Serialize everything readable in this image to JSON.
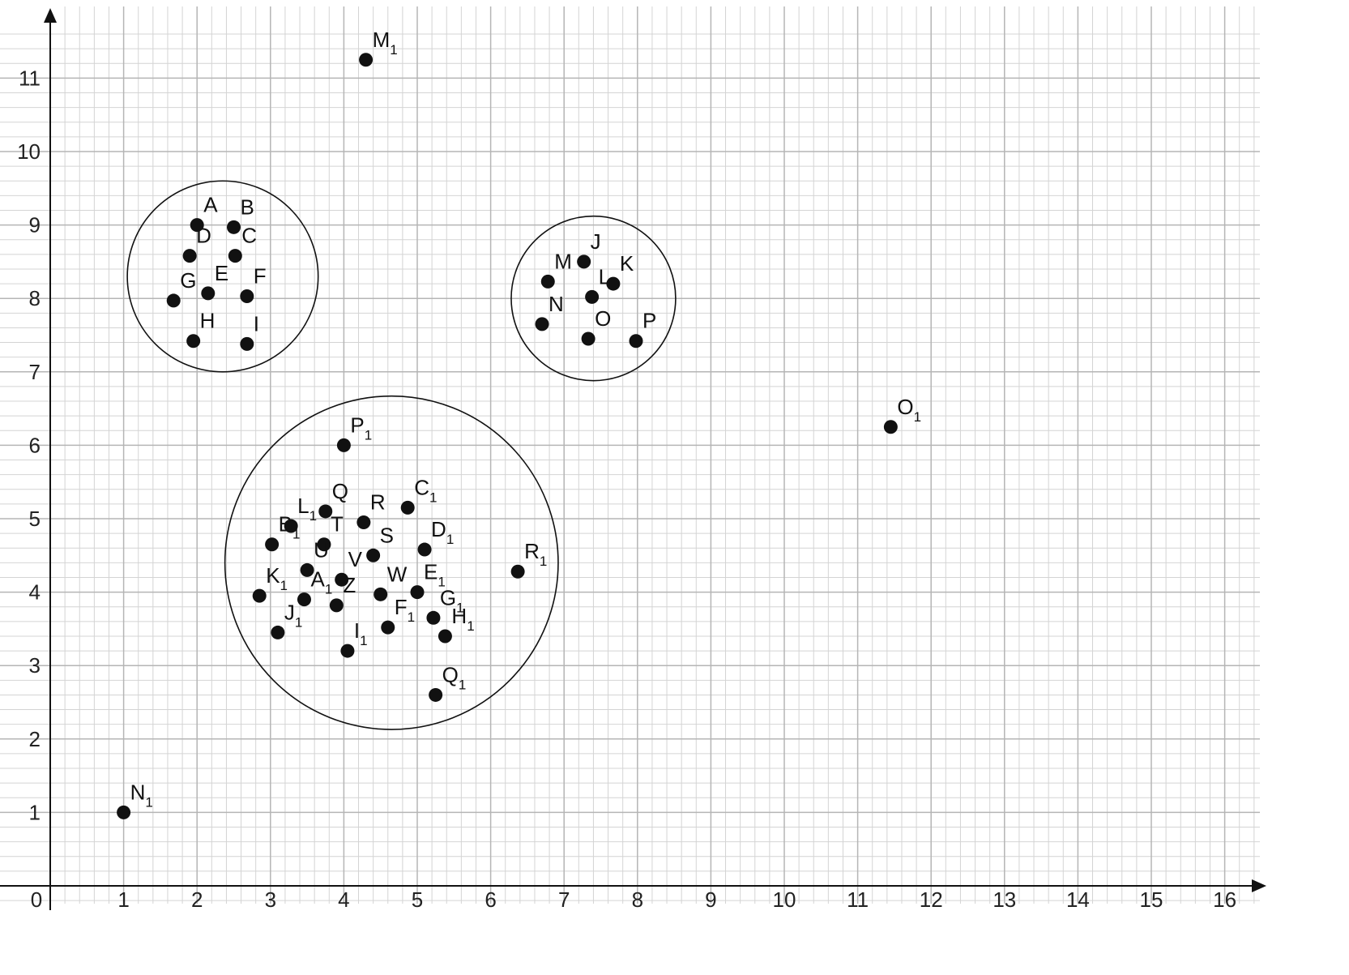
{
  "chart_data": {
    "type": "scatter",
    "title": "",
    "xlabel": "",
    "ylabel": "",
    "xlim": [
      0,
      16.5
    ],
    "ylim": [
      0,
      11.7
    ],
    "x_ticks": [
      0,
      1,
      2,
      3,
      4,
      5,
      6,
      7,
      8,
      9,
      10,
      11,
      12,
      13,
      14,
      15,
      16
    ],
    "y_ticks": [
      1,
      2,
      3,
      4,
      5,
      6,
      7,
      8,
      9,
      10,
      11
    ],
    "grid": true,
    "minor_grid_step": 0.2,
    "colors": {
      "grid_minor": "#d4d4d4",
      "grid_major": "#b5b5b5",
      "axis": "#111111",
      "point": "#111111",
      "circle": "#111111"
    },
    "circles": [
      {
        "name": "cluster-1",
        "cx": 2.35,
        "cy": 8.3,
        "r": 1.3
      },
      {
        "name": "cluster-2",
        "cx": 7.4,
        "cy": 8.0,
        "r": 1.12
      },
      {
        "name": "cluster-3",
        "cx": 4.65,
        "cy": 4.4,
        "r": 2.27
      }
    ],
    "points": [
      {
        "label": "A",
        "sub": "",
        "x": 2.0,
        "y": 9.0
      },
      {
        "label": "B",
        "sub": "",
        "x": 2.5,
        "y": 8.97
      },
      {
        "label": "C",
        "sub": "",
        "x": 2.52,
        "y": 8.58
      },
      {
        "label": "D",
        "sub": "",
        "x": 1.9,
        "y": 8.58
      },
      {
        "label": "E",
        "sub": "",
        "x": 2.15,
        "y": 8.07
      },
      {
        "label": "F",
        "sub": "",
        "x": 2.68,
        "y": 8.03
      },
      {
        "label": "G",
        "sub": "",
        "x": 1.68,
        "y": 7.97
      },
      {
        "label": "H",
        "sub": "",
        "x": 1.95,
        "y": 7.42
      },
      {
        "label": "I",
        "sub": "",
        "x": 2.68,
        "y": 7.38
      },
      {
        "label": "J",
        "sub": "",
        "x": 7.27,
        "y": 8.5
      },
      {
        "label": "K",
        "sub": "",
        "x": 7.67,
        "y": 8.2
      },
      {
        "label": "L",
        "sub": "",
        "x": 7.38,
        "y": 8.02
      },
      {
        "label": "M",
        "sub": "",
        "x": 6.78,
        "y": 8.23
      },
      {
        "label": "N",
        "sub": "",
        "x": 6.7,
        "y": 7.65
      },
      {
        "label": "O",
        "sub": "",
        "x": 7.33,
        "y": 7.45
      },
      {
        "label": "P",
        "sub": "",
        "x": 7.98,
        "y": 7.42
      },
      {
        "label": "Q",
        "sub": "",
        "x": 3.75,
        "y": 5.1
      },
      {
        "label": "R",
        "sub": "",
        "x": 4.27,
        "y": 4.95
      },
      {
        "label": "S",
        "sub": "",
        "x": 4.4,
        "y": 4.5
      },
      {
        "label": "T",
        "sub": "",
        "x": 3.73,
        "y": 4.65
      },
      {
        "label": "U",
        "sub": "",
        "x": 3.5,
        "y": 4.3
      },
      {
        "label": "V",
        "sub": "",
        "x": 3.97,
        "y": 4.17
      },
      {
        "label": "W",
        "sub": "",
        "x": 4.5,
        "y": 3.97
      },
      {
        "label": "Z",
        "sub": "",
        "x": 3.9,
        "y": 3.82
      },
      {
        "label": "B",
        "sub": "1",
        "x": 3.02,
        "y": 4.65
      },
      {
        "label": "A",
        "sub": "1",
        "x": 3.46,
        "y": 3.9
      },
      {
        "label": "C",
        "sub": "1",
        "x": 4.87,
        "y": 5.15
      },
      {
        "label": "D",
        "sub": "1",
        "x": 5.1,
        "y": 4.58
      },
      {
        "label": "E",
        "sub": "1",
        "x": 5.0,
        "y": 4.0
      },
      {
        "label": "F",
        "sub": "1",
        "x": 4.6,
        "y": 3.52
      },
      {
        "label": "G",
        "sub": "1",
        "x": 5.22,
        "y": 3.65
      },
      {
        "label": "H",
        "sub": "1",
        "x": 5.38,
        "y": 3.4
      },
      {
        "label": "I",
        "sub": "1",
        "x": 4.05,
        "y": 3.2
      },
      {
        "label": "J",
        "sub": "1",
        "x": 3.1,
        "y": 3.45
      },
      {
        "label": "K",
        "sub": "1",
        "x": 2.85,
        "y": 3.95
      },
      {
        "label": "L",
        "sub": "1",
        "x": 3.28,
        "y": 4.9
      },
      {
        "label": "M",
        "sub": "1",
        "x": 4.3,
        "y": 11.25
      },
      {
        "label": "N",
        "sub": "1",
        "x": 1.0,
        "y": 1.0
      },
      {
        "label": "O",
        "sub": "1",
        "x": 11.45,
        "y": 6.25
      },
      {
        "label": "P",
        "sub": "1",
        "x": 4.0,
        "y": 6.0
      },
      {
        "label": "Q",
        "sub": "1",
        "x": 5.25,
        "y": 2.6
      },
      {
        "label": "R",
        "sub": "1",
        "x": 6.37,
        "y": 4.28
      }
    ]
  }
}
